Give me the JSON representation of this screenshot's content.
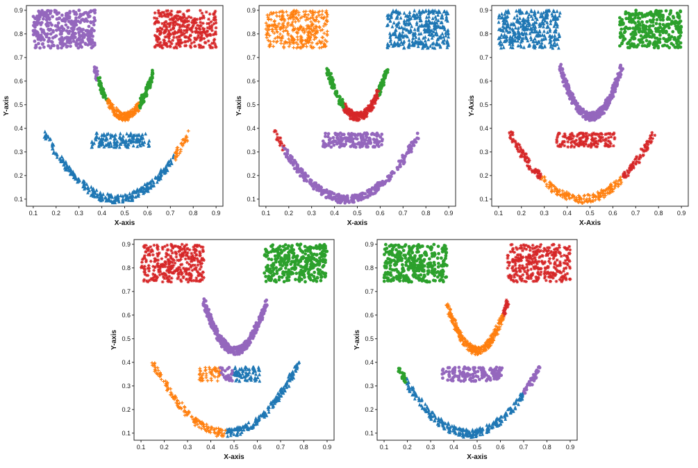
{
  "chart_data": [
    {
      "type": "scatter",
      "xlabel": "X-axis",
      "ylabel": "Y-axis",
      "xlim": [
        0.07,
        0.93
      ],
      "ylim": [
        0.07,
        0.92
      ],
      "xticks": [
        "0.1",
        "0.2",
        "0.3",
        "0.4",
        "0.5",
        "0.6",
        "0.7",
        "0.8",
        "0.9"
      ],
      "yticks": [
        "0.1",
        "0.2",
        "0.3",
        "0.4",
        "0.5",
        "0.6",
        "0.7",
        "0.8",
        "0.9"
      ],
      "shapes": [
        {
          "kind": "rect",
          "x": [
            0.1,
            0.37
          ],
          "y": [
            0.74,
            0.9
          ],
          "segments": [
            {
              "color": "#9467bd",
              "marker": "circle",
              "from": 0,
              "to": 1
            }
          ]
        },
        {
          "kind": "rect",
          "x": [
            0.63,
            0.9
          ],
          "y": [
            0.74,
            0.9
          ],
          "segments": [
            {
              "color": "#d62728",
              "marker": "star",
              "from": 0,
              "to": 1
            }
          ]
        },
        {
          "kind": "arc",
          "x": [
            0.37,
            0.63
          ],
          "y_min": 0.45,
          "y_max": 0.65,
          "segments": [
            {
              "color": "#9467bd",
              "marker": "circle",
              "from": 0,
              "to": 0.06
            },
            {
              "color": "#2ca02c",
              "marker": "circle",
              "from": 0.06,
              "to": 0.2
            },
            {
              "color": "#ff7f0e",
              "marker": "plus",
              "from": 0.2,
              "to": 0.75
            },
            {
              "color": "#2ca02c",
              "marker": "circle",
              "from": 0.75,
              "to": 1
            }
          ]
        },
        {
          "kind": "rect",
          "x": [
            0.35,
            0.61
          ],
          "y": [
            0.32,
            0.38
          ],
          "segments": [
            {
              "color": "#1f77b4",
              "marker": "triangle",
              "from": 0,
              "to": 1
            }
          ]
        },
        {
          "kind": "arc",
          "x": [
            0.15,
            0.78
          ],
          "y_min": 0.1,
          "y_max": 0.38,
          "segments": [
            {
              "color": "#1f77b4",
              "marker": "triangle",
              "from": 0,
              "to": 0.9
            },
            {
              "color": "#ff7f0e",
              "marker": "plus",
              "from": 0.9,
              "to": 1
            }
          ]
        }
      ]
    },
    {
      "type": "scatter",
      "xlabel": "X-axis",
      "ylabel": "Y-axis",
      "xlim": [
        0.07,
        0.93
      ],
      "ylim": [
        0.07,
        0.92
      ],
      "xticks": [
        "0.1",
        "0.2",
        "0.3",
        "0.4",
        "0.5",
        "0.6",
        "0.7",
        "0.8",
        "0.9"
      ],
      "yticks": [
        "0.1",
        "0.2",
        "0.3",
        "0.4",
        "0.5",
        "0.6",
        "0.7",
        "0.8",
        "0.9"
      ],
      "shapes": [
        {
          "kind": "rect",
          "x": [
            0.1,
            0.37
          ],
          "y": [
            0.74,
            0.9
          ],
          "segments": [
            {
              "color": "#ff7f0e",
              "marker": "plus",
              "from": 0,
              "to": 1
            }
          ]
        },
        {
          "kind": "rect",
          "x": [
            0.63,
            0.9
          ],
          "y": [
            0.74,
            0.9
          ],
          "segments": [
            {
              "color": "#1f77b4",
              "marker": "triangle",
              "from": 0,
              "to": 1
            }
          ]
        },
        {
          "kind": "arc",
          "x": [
            0.37,
            0.63
          ],
          "y_min": 0.45,
          "y_max": 0.65,
          "segments": [
            {
              "color": "#2ca02c",
              "marker": "circle",
              "from": 0,
              "to": 0.27
            },
            {
              "color": "#d62728",
              "marker": "star",
              "from": 0.27,
              "to": 0.85
            },
            {
              "color": "#2ca02c",
              "marker": "circle",
              "from": 0.85,
              "to": 1
            }
          ]
        },
        {
          "kind": "rect",
          "x": [
            0.35,
            0.61
          ],
          "y": [
            0.32,
            0.38
          ],
          "segments": [
            {
              "color": "#9467bd",
              "marker": "circle",
              "from": 0,
              "to": 1
            }
          ]
        },
        {
          "kind": "arc",
          "x": [
            0.14,
            0.77
          ],
          "y_min": 0.1,
          "y_max": 0.38,
          "segments": [
            {
              "color": "#d62728",
              "marker": "star",
              "from": 0,
              "to": 0.06
            },
            {
              "color": "#9467bd",
              "marker": "circle",
              "from": 0.06,
              "to": 1
            }
          ]
        }
      ]
    },
    {
      "type": "scatter",
      "xlabel": "X-Axis",
      "ylabel": "Y-Axis",
      "xlim": [
        0.07,
        0.93
      ],
      "ylim": [
        0.07,
        0.92
      ],
      "xticks": [
        "0.1",
        "0.2",
        "0.3",
        "0.4",
        "0.5",
        "0.6",
        "0.7",
        "0.8",
        "0.9"
      ],
      "yticks": [
        "0.1",
        "0.2",
        "0.3",
        "0.4",
        "0.5",
        "0.6",
        "0.7",
        "0.8",
        "0.9"
      ],
      "shapes": [
        {
          "kind": "rect",
          "x": [
            0.1,
            0.37
          ],
          "y": [
            0.74,
            0.9
          ],
          "segments": [
            {
              "color": "#1f77b4",
              "marker": "triangle",
              "from": 0,
              "to": 1
            }
          ]
        },
        {
          "kind": "rect",
          "x": [
            0.63,
            0.9
          ],
          "y": [
            0.74,
            0.9
          ],
          "segments": [
            {
              "color": "#2ca02c",
              "marker": "circle",
              "from": 0,
              "to": 1
            }
          ]
        },
        {
          "kind": "arc",
          "x": [
            0.37,
            0.64
          ],
          "y_min": 0.45,
          "y_max": 0.66,
          "segments": [
            {
              "color": "#9467bd",
              "marker": "circle",
              "from": 0,
              "to": 1
            }
          ]
        },
        {
          "kind": "rect",
          "x": [
            0.35,
            0.61
          ],
          "y": [
            0.32,
            0.38
          ],
          "segments": [
            {
              "color": "#d62728",
              "marker": "star",
              "from": 0,
              "to": 1
            }
          ]
        },
        {
          "kind": "arc",
          "x": [
            0.15,
            0.78
          ],
          "y_min": 0.1,
          "y_max": 0.38,
          "segments": [
            {
              "color": "#d62728",
              "marker": "star",
              "from": 0,
              "to": 0.22
            },
            {
              "color": "#ff7f0e",
              "marker": "plus",
              "from": 0.22,
              "to": 0.78
            },
            {
              "color": "#d62728",
              "marker": "star",
              "from": 0.78,
              "to": 1
            }
          ]
        }
      ]
    },
    {
      "type": "scatter",
      "xlabel": "X-axis",
      "ylabel": "Y-axis",
      "xlim": [
        0.07,
        0.93
      ],
      "ylim": [
        0.07,
        0.92
      ],
      "xticks": [
        "0.1",
        "0.2",
        "0.3",
        "0.4",
        "0.5",
        "0.6",
        "0.7",
        "0.8",
        "0.9"
      ],
      "yticks": [
        "0.1",
        "0.2",
        "0.3",
        "0.4",
        "0.5",
        "0.6",
        "0.7",
        "0.8",
        "0.9"
      ],
      "shapes": [
        {
          "kind": "rect",
          "x": [
            0.1,
            0.37
          ],
          "y": [
            0.74,
            0.9
          ],
          "segments": [
            {
              "color": "#d62728",
              "marker": "star",
              "from": 0,
              "to": 1
            }
          ]
        },
        {
          "kind": "rect",
          "x": [
            0.63,
            0.9
          ],
          "y": [
            0.74,
            0.9
          ],
          "segments": [
            {
              "color": "#2ca02c",
              "marker": "circle",
              "from": 0,
              "to": 1
            }
          ]
        },
        {
          "kind": "arc",
          "x": [
            0.37,
            0.64
          ],
          "y_min": 0.45,
          "y_max": 0.66,
          "segments": [
            {
              "color": "#9467bd",
              "marker": "circle",
              "from": 0,
              "to": 1
            }
          ]
        },
        {
          "kind": "rect",
          "x": [
            0.35,
            0.61
          ],
          "y": [
            0.32,
            0.38
          ],
          "segments": [
            {
              "color": "#ff7f0e",
              "marker": "plus",
              "from": 0,
              "to": 0.35
            },
            {
              "color": "#9467bd",
              "marker": "circle",
              "from": 0.35,
              "to": 0.55
            },
            {
              "color": "#1f77b4",
              "marker": "triangle",
              "from": 0.55,
              "to": 1
            }
          ]
        },
        {
          "kind": "arc",
          "x": [
            0.15,
            0.78
          ],
          "y_min": 0.1,
          "y_max": 0.4,
          "segments": [
            {
              "color": "#ff7f0e",
              "marker": "plus",
              "from": 0,
              "to": 0.5
            },
            {
              "color": "#1f77b4",
              "marker": "triangle",
              "from": 0.5,
              "to": 1
            }
          ]
        }
      ]
    },
    {
      "type": "scatter",
      "xlabel": "X-axis",
      "ylabel": "Y-axis",
      "xlim": [
        0.07,
        0.93
      ],
      "ylim": [
        0.07,
        0.92
      ],
      "xticks": [
        "0.1",
        "0.2",
        "0.3",
        "0.4",
        "0.5",
        "0.6",
        "0.7",
        "0.8",
        "0.9"
      ],
      "yticks": [
        "0.1",
        "0.2",
        "0.3",
        "0.4",
        "0.5",
        "0.6",
        "0.7",
        "0.8",
        "0.9"
      ],
      "shapes": [
        {
          "kind": "rect",
          "x": [
            0.1,
            0.37
          ],
          "y": [
            0.74,
            0.9
          ],
          "segments": [
            {
              "color": "#2ca02c",
              "marker": "circle",
              "from": 0,
              "to": 1
            }
          ]
        },
        {
          "kind": "rect",
          "x": [
            0.63,
            0.9
          ],
          "y": [
            0.74,
            0.9
          ],
          "segments": [
            {
              "color": "#d62728",
              "marker": "star",
              "from": 0,
              "to": 1
            }
          ]
        },
        {
          "kind": "arc",
          "x": [
            0.37,
            0.63
          ],
          "y_min": 0.45,
          "y_max": 0.65,
          "segments": [
            {
              "color": "#ff7f0e",
              "marker": "plus",
              "from": 0,
              "to": 0.93
            },
            {
              "color": "#d62728",
              "marker": "star",
              "from": 0.93,
              "to": 1
            }
          ]
        },
        {
          "kind": "rect",
          "x": [
            0.35,
            0.61
          ],
          "y": [
            0.32,
            0.38
          ],
          "segments": [
            {
              "color": "#9467bd",
              "marker": "circle",
              "from": 0,
              "to": 1
            }
          ]
        },
        {
          "kind": "arc",
          "x": [
            0.16,
            0.77
          ],
          "y_min": 0.1,
          "y_max": 0.38,
          "segments": [
            {
              "color": "#2ca02c",
              "marker": "circle",
              "from": 0,
              "to": 0.06
            },
            {
              "color": "#1f77b4",
              "marker": "triangle",
              "from": 0.06,
              "to": 0.88
            },
            {
              "color": "#9467bd",
              "marker": "circle",
              "from": 0.88,
              "to": 1
            }
          ]
        }
      ]
    }
  ]
}
